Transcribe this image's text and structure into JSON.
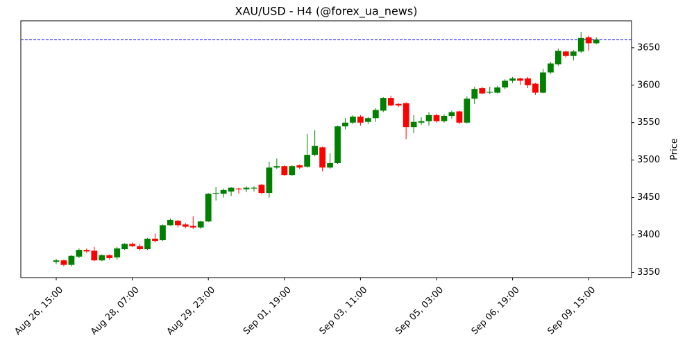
{
  "chart_data": {
    "type": "candlestick",
    "title": "XAU/USD - H4 (@forex_ua_news)",
    "y_label": "Price",
    "categories": [
      "Aug 26, 15:00",
      null,
      null,
      null,
      null,
      null,
      null,
      null,
      null,
      null,
      "Aug 28, 07:00",
      null,
      null,
      null,
      null,
      null,
      null,
      null,
      null,
      null,
      "Aug 29, 23:00",
      null,
      null,
      null,
      null,
      null,
      null,
      null,
      null,
      null,
      "Sep 01, 19:00",
      null,
      null,
      null,
      null,
      null,
      null,
      null,
      null,
      null,
      "Sep 03, 11:00",
      null,
      null,
      null,
      null,
      null,
      null,
      null,
      null,
      null,
      "Sep 05, 03:00",
      null,
      null,
      null,
      null,
      null,
      null,
      null,
      null,
      null,
      "Sep 06, 19:00",
      null,
      null,
      null,
      null,
      null,
      null,
      null,
      null,
      null,
      "Sep 09, 15:00",
      null
    ],
    "open": [
      3364,
      3366,
      3360,
      3371,
      3380,
      3379,
      3366,
      3373,
      3370,
      3381,
      3388,
      3385,
      3381,
      3395,
      3393,
      3413,
      3419,
      3414,
      3412,
      3410,
      3418,
      3455,
      3455,
      3458,
      3462,
      3461,
      3462,
      3467,
      3456,
      3490,
      3492,
      3480,
      3493,
      3491,
      3507,
      3517,
      3490,
      3496,
      3545,
      3550,
      3558,
      3551,
      3556,
      3566,
      3583,
      3575,
      3576,
      3544,
      3550,
      3552,
      3560,
      3552,
      3559,
      3565,
      3550,
      3582,
      3596,
      3590,
      3590,
      3597,
      3606,
      3609,
      3609,
      3602,
      3590,
      3617,
      3628,
      3645,
      3639,
      3645,
      3664,
      3656
    ],
    "high": [
      3368,
      3367,
      3373,
      3382,
      3382,
      3384,
      3374,
      3374,
      3384,
      3389,
      3390,
      3388,
      3396,
      3402,
      3414,
      3422,
      3420,
      3416,
      3425,
      3419,
      3456,
      3464,
      3462,
      3464,
      3463,
      3465,
      3465,
      3468,
      3498,
      3502,
      3493,
      3493,
      3494,
      3535,
      3540,
      3518,
      3509,
      3546,
      3556,
      3560,
      3560,
      3558,
      3569,
      3584,
      3586,
      3576,
      3577,
      3560,
      3557,
      3564,
      3562,
      3561,
      3566,
      3566,
      3585,
      3598,
      3598,
      3598,
      3599,
      3608,
      3611,
      3610,
      3611,
      3603,
      3622,
      3631,
      3649,
      3646,
      3647,
      3671,
      3666,
      3664
    ],
    "low": [
      3361,
      3358,
      3358,
      3369,
      3376,
      3365,
      3365,
      3367,
      3367,
      3380,
      3384,
      3379,
      3380,
      3390,
      3392,
      3412,
      3410,
      3409,
      3408,
      3408,
      3417,
      3446,
      3450,
      3452,
      3455,
      3457,
      3458,
      3455,
      3450,
      3488,
      3479,
      3479,
      3488,
      3490,
      3505,
      3485,
      3488,
      3495,
      3541,
      3548,
      3546,
      3548,
      3551,
      3564,
      3572,
      3571,
      3528,
      3536,
      3547,
      3546,
      3550,
      3550,
      3555,
      3548,
      3549,
      3575,
      3588,
      3588,
      3589,
      3595,
      3603,
      3600,
      3596,
      3587,
      3589,
      3615,
      3626,
      3637,
      3633,
      3643,
      3646,
      3655
    ],
    "close": [
      3366,
      3360,
      3372,
      3380,
      3378,
      3366,
      3373,
      3369,
      3382,
      3388,
      3385,
      3381,
      3395,
      3392,
      3413,
      3420,
      3413,
      3411,
      3410,
      3418,
      3455,
      3456,
      3460,
      3463,
      3461,
      3463,
      3463,
      3456,
      3490,
      3492,
      3480,
      3492,
      3490,
      3507,
      3519,
      3490,
      3496,
      3545,
      3550,
      3558,
      3550,
      3556,
      3567,
      3583,
      3573,
      3573,
      3544,
      3551,
      3552,
      3560,
      3552,
      3559,
      3564,
      3550,
      3582,
      3595,
      3589,
      3591,
      3597,
      3606,
      3609,
      3606,
      3600,
      3590,
      3617,
      3629,
      3646,
      3639,
      3645,
      3663,
      3656,
      3661
    ],
    "up_color": "green",
    "down_color": "red",
    "hline": {
      "value": 3661,
      "color": "blue"
    },
    "ylim": [
      3343,
      3686
    ],
    "yticks": [
      3350,
      3400,
      3450,
      3500,
      3550,
      3600,
      3650
    ]
  }
}
